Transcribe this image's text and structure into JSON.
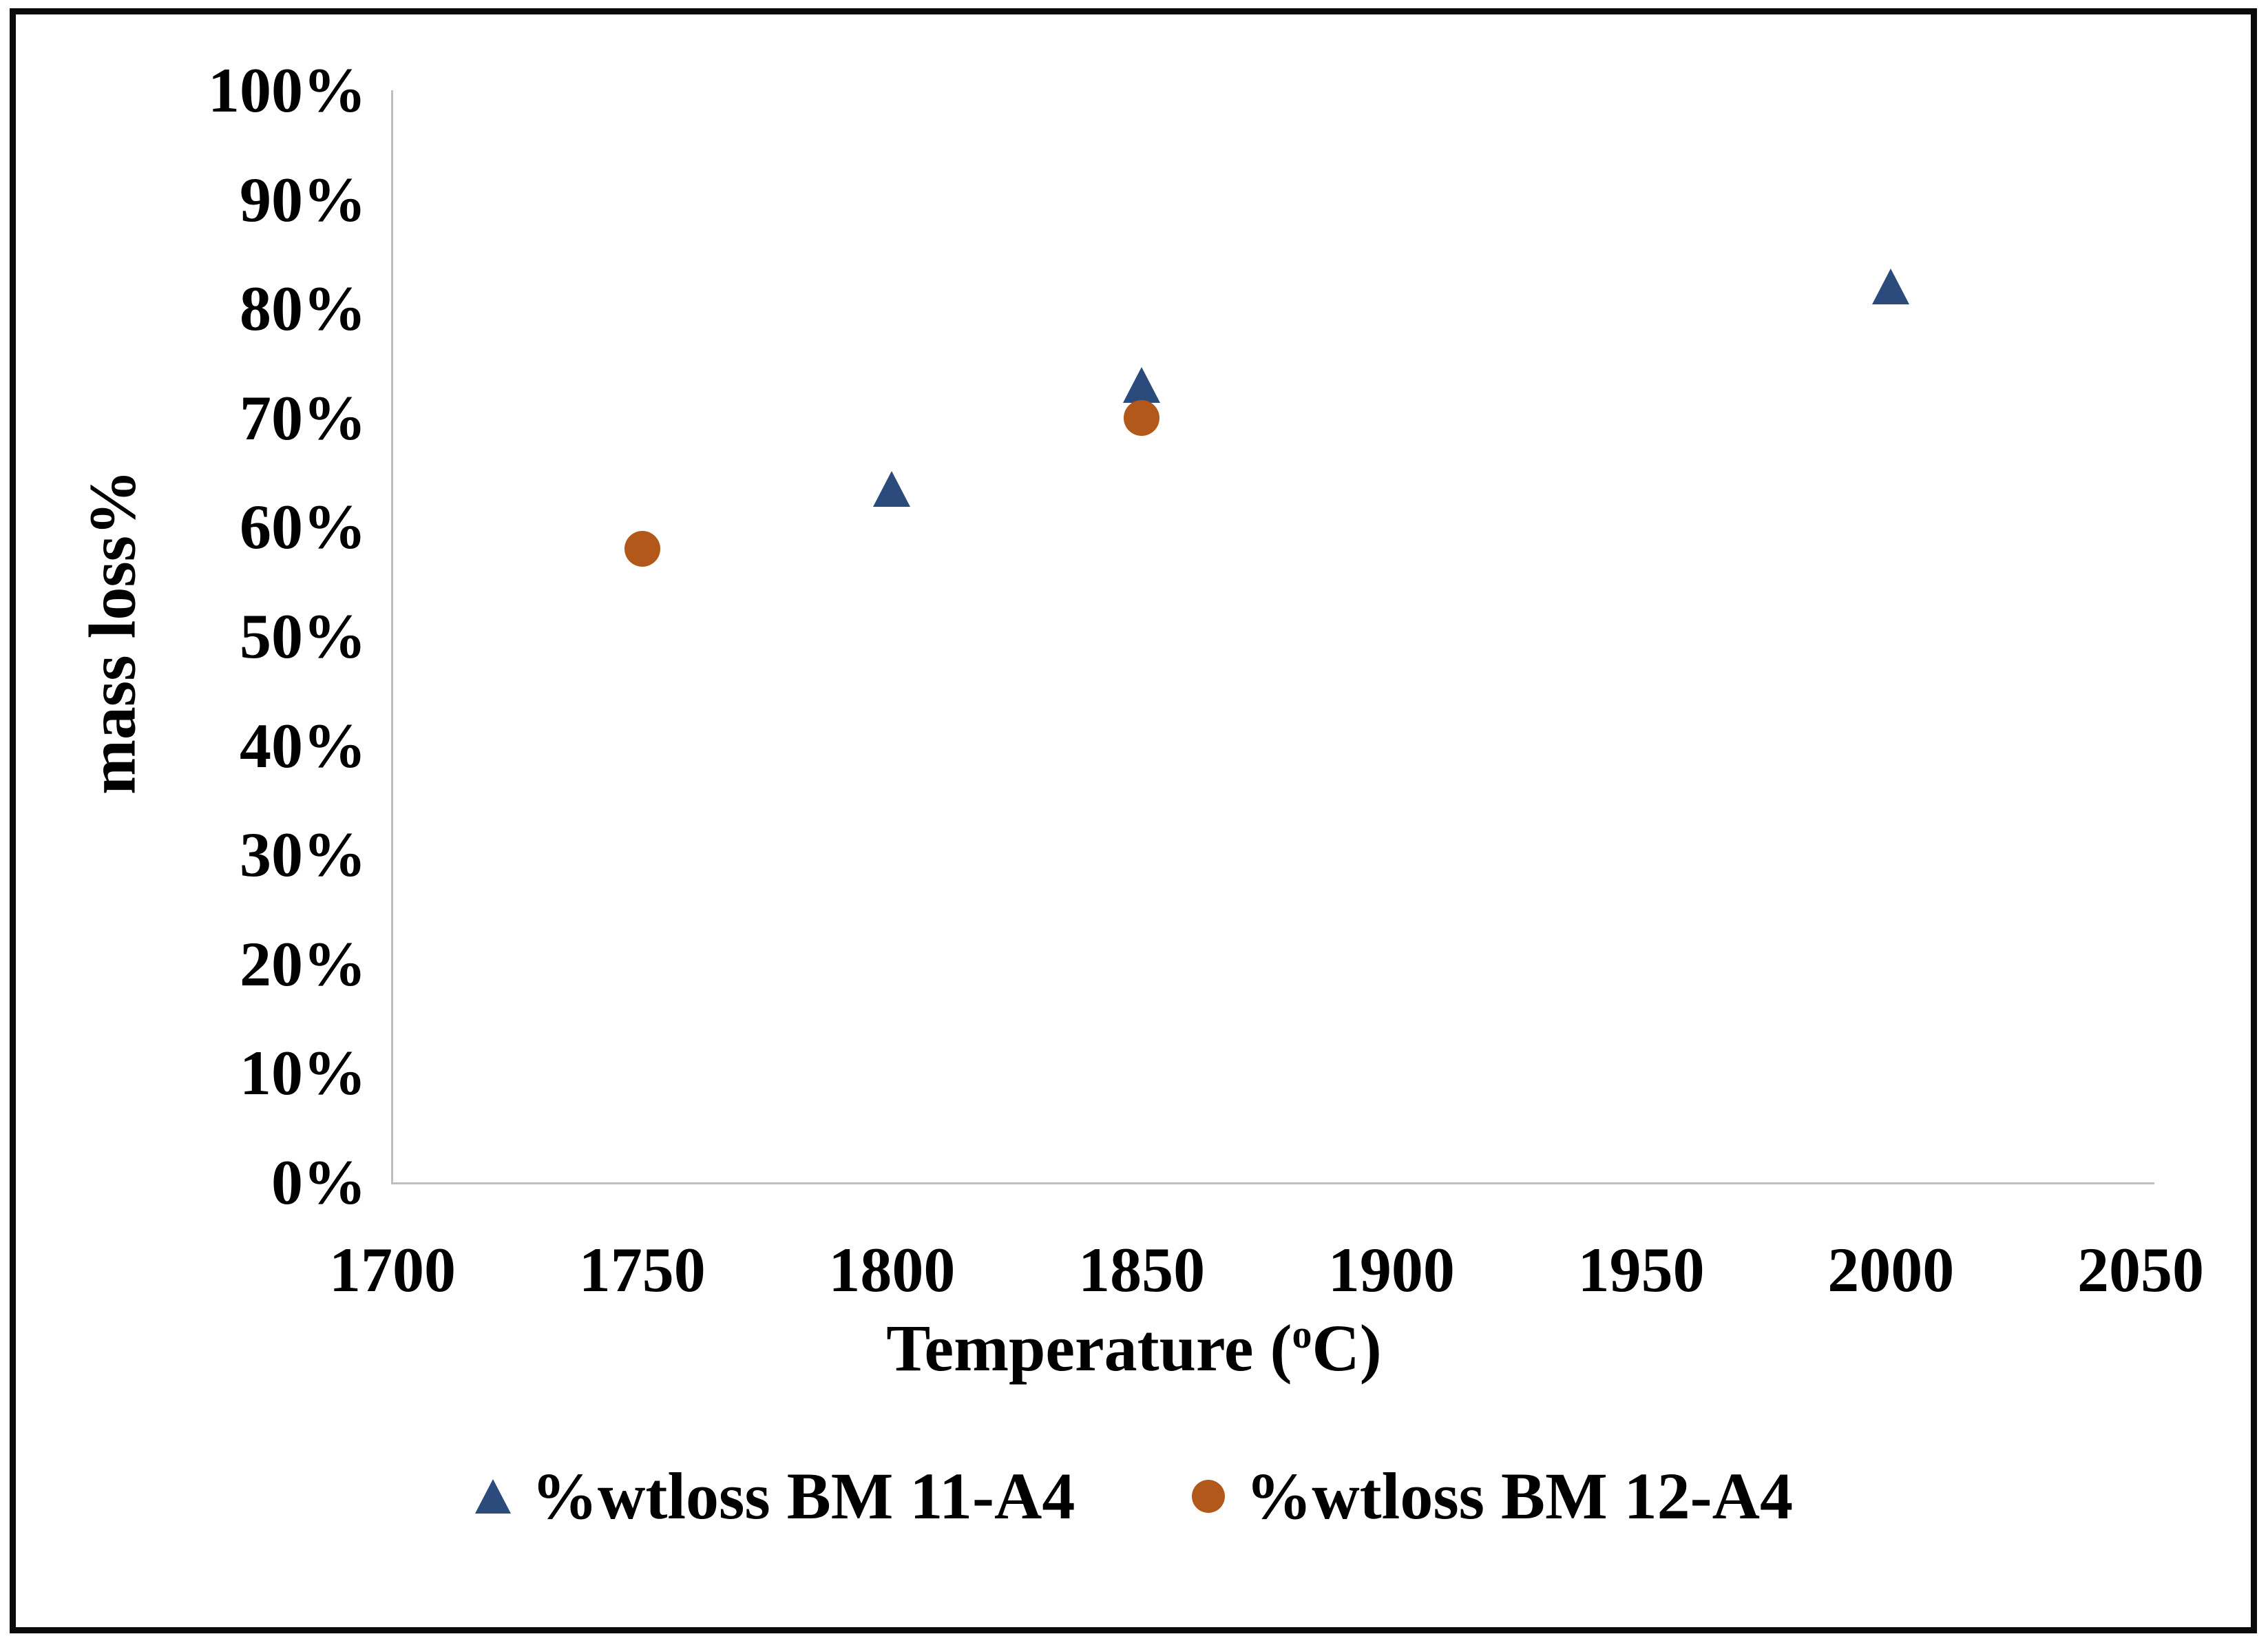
{
  "chart_data": {
    "type": "scatter",
    "title": "",
    "xlabel": {
      "pre": "Temperature (",
      "sup": "o",
      "post": "C)"
    },
    "ylabel": "mass loss%",
    "x_ticks": [
      1700,
      1750,
      1800,
      1850,
      1900,
      1950,
      2000,
      2050
    ],
    "y_ticks": [
      "0%",
      "10%",
      "20%",
      "30%",
      "40%",
      "50%",
      "60%",
      "70%",
      "80%",
      "90%",
      "100%"
    ],
    "xlim": [
      1700,
      2050
    ],
    "ylim_percent": [
      0,
      100
    ],
    "grid": false,
    "legend_position": "bottom-center",
    "axis_color": "#BFBFBF",
    "text_color": "#000000",
    "series": [
      {
        "name": "%wtloss BM 11-A4",
        "marker": "triangle",
        "color": "#2B4B7C",
        "points": [
          {
            "x": 1800,
            "y_percent": 63.5
          },
          {
            "x": 1850,
            "y_percent": 73
          },
          {
            "x": 2000,
            "y_percent": 82
          }
        ]
      },
      {
        "name": "%wtloss BM 12-A4",
        "marker": "circle",
        "color": "#B1581A",
        "points": [
          {
            "x": 1750,
            "y_percent": 58
          },
          {
            "x": 1850,
            "y_percent": 70
          }
        ]
      }
    ]
  }
}
